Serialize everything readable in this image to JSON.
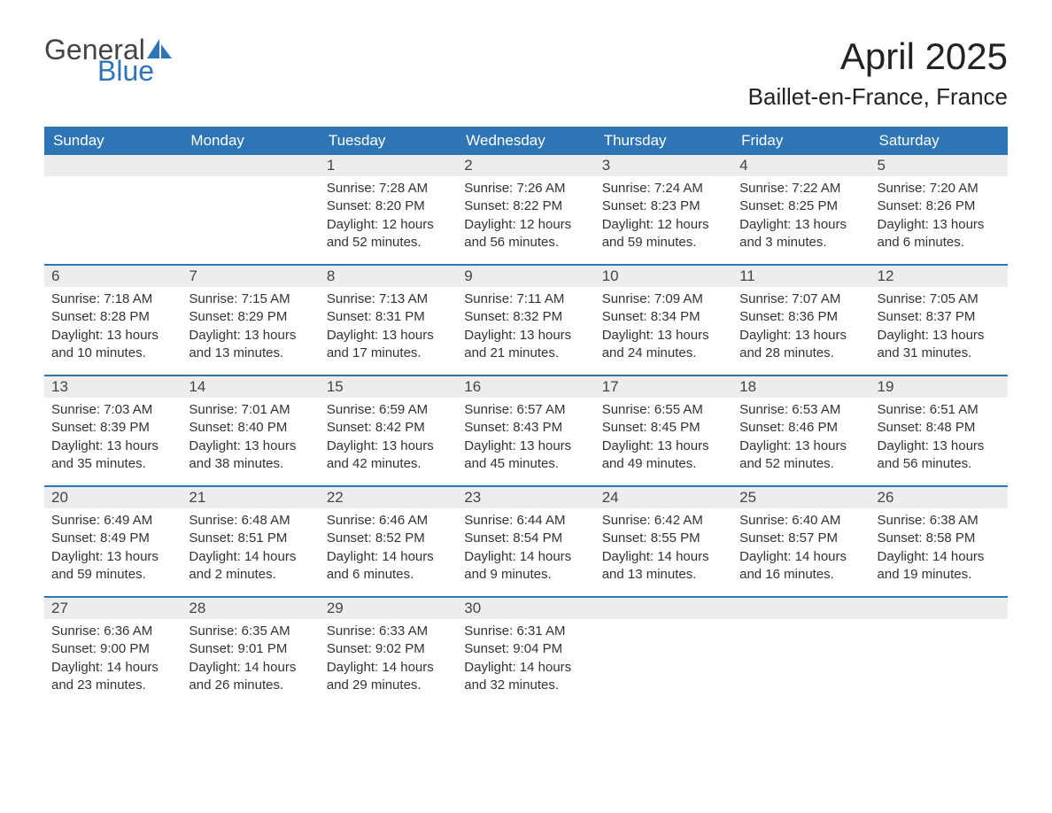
{
  "logo": {
    "word1": "General",
    "word2": "Blue",
    "sail_color": "#2e75b6",
    "word1_color": "#444444"
  },
  "title": "April 2025",
  "location": "Baillet-en-France, France",
  "header_bg": "#2e75b6",
  "header_fg": "#ffffff",
  "daynum_bg": "#ededed",
  "rule_color": "#2e75b6",
  "text_color": "#333333",
  "page_bg": "#ffffff",
  "font_family": "Segoe UI, Arial, sans-serif",
  "title_fontsize": 42,
  "location_fontsize": 26,
  "header_fontsize": 17,
  "cell_fontsize": 15,
  "day_headers": [
    "Sunday",
    "Monday",
    "Tuesday",
    "Wednesday",
    "Thursday",
    "Friday",
    "Saturday"
  ],
  "weeks": [
    [
      null,
      null,
      {
        "n": "1",
        "sr": "Sunrise: 7:28 AM",
        "ss": "Sunset: 8:20 PM",
        "dl": "Daylight: 12 hours and 52 minutes."
      },
      {
        "n": "2",
        "sr": "Sunrise: 7:26 AM",
        "ss": "Sunset: 8:22 PM",
        "dl": "Daylight: 12 hours and 56 minutes."
      },
      {
        "n": "3",
        "sr": "Sunrise: 7:24 AM",
        "ss": "Sunset: 8:23 PM",
        "dl": "Daylight: 12 hours and 59 minutes."
      },
      {
        "n": "4",
        "sr": "Sunrise: 7:22 AM",
        "ss": "Sunset: 8:25 PM",
        "dl": "Daylight: 13 hours and 3 minutes."
      },
      {
        "n": "5",
        "sr": "Sunrise: 7:20 AM",
        "ss": "Sunset: 8:26 PM",
        "dl": "Daylight: 13 hours and 6 minutes."
      }
    ],
    [
      {
        "n": "6",
        "sr": "Sunrise: 7:18 AM",
        "ss": "Sunset: 8:28 PM",
        "dl": "Daylight: 13 hours and 10 minutes."
      },
      {
        "n": "7",
        "sr": "Sunrise: 7:15 AM",
        "ss": "Sunset: 8:29 PM",
        "dl": "Daylight: 13 hours and 13 minutes."
      },
      {
        "n": "8",
        "sr": "Sunrise: 7:13 AM",
        "ss": "Sunset: 8:31 PM",
        "dl": "Daylight: 13 hours and 17 minutes."
      },
      {
        "n": "9",
        "sr": "Sunrise: 7:11 AM",
        "ss": "Sunset: 8:32 PM",
        "dl": "Daylight: 13 hours and 21 minutes."
      },
      {
        "n": "10",
        "sr": "Sunrise: 7:09 AM",
        "ss": "Sunset: 8:34 PM",
        "dl": "Daylight: 13 hours and 24 minutes."
      },
      {
        "n": "11",
        "sr": "Sunrise: 7:07 AM",
        "ss": "Sunset: 8:36 PM",
        "dl": "Daylight: 13 hours and 28 minutes."
      },
      {
        "n": "12",
        "sr": "Sunrise: 7:05 AM",
        "ss": "Sunset: 8:37 PM",
        "dl": "Daylight: 13 hours and 31 minutes."
      }
    ],
    [
      {
        "n": "13",
        "sr": "Sunrise: 7:03 AM",
        "ss": "Sunset: 8:39 PM",
        "dl": "Daylight: 13 hours and 35 minutes."
      },
      {
        "n": "14",
        "sr": "Sunrise: 7:01 AM",
        "ss": "Sunset: 8:40 PM",
        "dl": "Daylight: 13 hours and 38 minutes."
      },
      {
        "n": "15",
        "sr": "Sunrise: 6:59 AM",
        "ss": "Sunset: 8:42 PM",
        "dl": "Daylight: 13 hours and 42 minutes."
      },
      {
        "n": "16",
        "sr": "Sunrise: 6:57 AM",
        "ss": "Sunset: 8:43 PM",
        "dl": "Daylight: 13 hours and 45 minutes."
      },
      {
        "n": "17",
        "sr": "Sunrise: 6:55 AM",
        "ss": "Sunset: 8:45 PM",
        "dl": "Daylight: 13 hours and 49 minutes."
      },
      {
        "n": "18",
        "sr": "Sunrise: 6:53 AM",
        "ss": "Sunset: 8:46 PM",
        "dl": "Daylight: 13 hours and 52 minutes."
      },
      {
        "n": "19",
        "sr": "Sunrise: 6:51 AM",
        "ss": "Sunset: 8:48 PM",
        "dl": "Daylight: 13 hours and 56 minutes."
      }
    ],
    [
      {
        "n": "20",
        "sr": "Sunrise: 6:49 AM",
        "ss": "Sunset: 8:49 PM",
        "dl": "Daylight: 13 hours and 59 minutes."
      },
      {
        "n": "21",
        "sr": "Sunrise: 6:48 AM",
        "ss": "Sunset: 8:51 PM",
        "dl": "Daylight: 14 hours and 2 minutes."
      },
      {
        "n": "22",
        "sr": "Sunrise: 6:46 AM",
        "ss": "Sunset: 8:52 PM",
        "dl": "Daylight: 14 hours and 6 minutes."
      },
      {
        "n": "23",
        "sr": "Sunrise: 6:44 AM",
        "ss": "Sunset: 8:54 PM",
        "dl": "Daylight: 14 hours and 9 minutes."
      },
      {
        "n": "24",
        "sr": "Sunrise: 6:42 AM",
        "ss": "Sunset: 8:55 PM",
        "dl": "Daylight: 14 hours and 13 minutes."
      },
      {
        "n": "25",
        "sr": "Sunrise: 6:40 AM",
        "ss": "Sunset: 8:57 PM",
        "dl": "Daylight: 14 hours and 16 minutes."
      },
      {
        "n": "26",
        "sr": "Sunrise: 6:38 AM",
        "ss": "Sunset: 8:58 PM",
        "dl": "Daylight: 14 hours and 19 minutes."
      }
    ],
    [
      {
        "n": "27",
        "sr": "Sunrise: 6:36 AM",
        "ss": "Sunset: 9:00 PM",
        "dl": "Daylight: 14 hours and 23 minutes."
      },
      {
        "n": "28",
        "sr": "Sunrise: 6:35 AM",
        "ss": "Sunset: 9:01 PM",
        "dl": "Daylight: 14 hours and 26 minutes."
      },
      {
        "n": "29",
        "sr": "Sunrise: 6:33 AM",
        "ss": "Sunset: 9:02 PM",
        "dl": "Daylight: 14 hours and 29 minutes."
      },
      {
        "n": "30",
        "sr": "Sunrise: 6:31 AM",
        "ss": "Sunset: 9:04 PM",
        "dl": "Daylight: 14 hours and 32 minutes."
      },
      null,
      null,
      null
    ]
  ]
}
